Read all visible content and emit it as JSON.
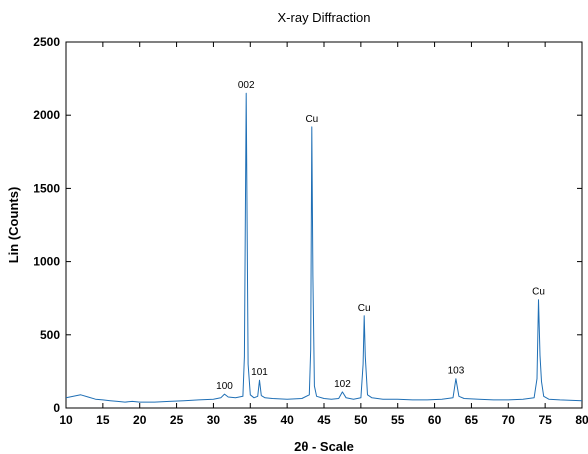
{
  "chart_data": {
    "type": "line",
    "title": "X-ray Diffraction",
    "xlabel": "2θ - Scale",
    "ylabel": "Lin (Counts)",
    "xlim": [
      10,
      80
    ],
    "ylim": [
      0,
      2500
    ],
    "xticks": [
      10,
      15,
      20,
      25,
      30,
      35,
      40,
      45,
      50,
      55,
      60,
      65,
      70,
      75,
      80
    ],
    "yticks": [
      0,
      500,
      1000,
      1500,
      2000,
      2500
    ],
    "grid": false,
    "legend": "none",
    "line_color": "#1f6fb5",
    "series": [
      {
        "x": [
          10,
          11,
          12,
          13,
          14,
          15,
          16,
          17,
          18,
          19,
          20,
          22,
          24,
          26,
          28,
          30,
          31,
          31.5,
          32,
          33,
          34,
          34.2,
          34.45,
          34.7,
          35,
          35.5,
          36,
          36.25,
          36.5,
          37,
          38,
          40,
          42,
          43,
          43.2,
          43.35,
          43.5,
          43.7,
          44,
          45,
          46,
          47,
          47.5,
          48,
          49,
          50,
          50.3,
          50.45,
          50.6,
          50.9,
          51.5,
          53,
          55,
          57,
          59,
          61,
          62.5,
          62.9,
          63.3,
          64,
          66,
          68,
          70,
          72,
          73.5,
          73.9,
          74.1,
          74.3,
          74.5,
          74.8,
          75.5,
          77,
          80
        ],
        "y": [
          70,
          80,
          90,
          75,
          60,
          55,
          50,
          45,
          40,
          45,
          40,
          40,
          45,
          50,
          55,
          60,
          70,
          95,
          75,
          70,
          80,
          350,
          2150,
          300,
          90,
          70,
          80,
          190,
          85,
          70,
          65,
          60,
          65,
          90,
          400,
          1920,
          900,
          150,
          80,
          65,
          60,
          65,
          110,
          70,
          60,
          70,
          300,
          630,
          350,
          90,
          70,
          60,
          60,
          55,
          55,
          60,
          70,
          200,
          80,
          65,
          60,
          55,
          55,
          60,
          70,
          200,
          740,
          360,
          180,
          80,
          60,
          55,
          50
        ]
      }
    ],
    "annotations": [
      {
        "text": "002",
        "x": 34.45,
        "y": 2150
      },
      {
        "text": "Cu",
        "x": 43.35,
        "y": 1920
      },
      {
        "text": "Cu",
        "x": 50.45,
        "y": 630
      },
      {
        "text": "Cu",
        "x": 74.1,
        "y": 740
      },
      {
        "text": "100",
        "x": 31.5,
        "y": 95
      },
      {
        "text": "101",
        "x": 36.25,
        "y": 190
      },
      {
        "text": "102",
        "x": 47.5,
        "y": 110
      },
      {
        "text": "103",
        "x": 62.9,
        "y": 200
      }
    ]
  }
}
